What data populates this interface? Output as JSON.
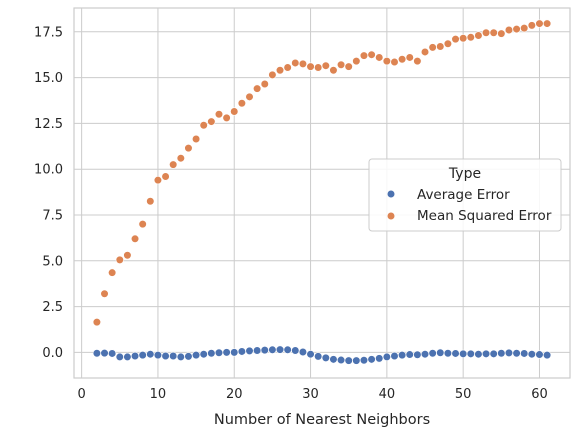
{
  "chart_data": {
    "type": "scatter",
    "title": "",
    "xlabel": "Number of Nearest Neighbors",
    "ylabel": "",
    "xlim": [
      -1.0,
      64.0
    ],
    "ylim": [
      -1.4,
      18.8
    ],
    "grid": true,
    "legend_placement": "center-right",
    "legend_title": "Type",
    "x_ticks": [
      {
        "value": 0,
        "label": "0"
      },
      {
        "value": 10,
        "label": "10"
      },
      {
        "value": 20,
        "label": "20"
      },
      {
        "value": 30,
        "label": "30"
      },
      {
        "value": 40,
        "label": "40"
      },
      {
        "value": 50,
        "label": "50"
      },
      {
        "value": 60,
        "label": "60"
      }
    ],
    "y_ticks": [
      {
        "value": 0.0,
        "label": "0.0"
      },
      {
        "value": 2.5,
        "label": "2.5"
      },
      {
        "value": 5.0,
        "label": "5.0"
      },
      {
        "value": 7.5,
        "label": "7.5"
      },
      {
        "value": 10.0,
        "label": "10.0"
      },
      {
        "value": 12.5,
        "label": "12.5"
      },
      {
        "value": 15.0,
        "label": "15.0"
      },
      {
        "value": 17.5,
        "label": "17.5"
      }
    ],
    "x": [
      2,
      3,
      4,
      5,
      6,
      7,
      8,
      9,
      10,
      11,
      12,
      13,
      14,
      15,
      16,
      17,
      18,
      19,
      20,
      21,
      22,
      23,
      24,
      25,
      26,
      27,
      28,
      29,
      30,
      31,
      32,
      33,
      34,
      35,
      36,
      37,
      38,
      39,
      40,
      41,
      42,
      43,
      44,
      45,
      46,
      47,
      48,
      49,
      50,
      51,
      52,
      53,
      54,
      55,
      56,
      57,
      58,
      59,
      60,
      61
    ],
    "series": [
      {
        "name": "Average Error",
        "color": "#4c72b0",
        "values": [
          -0.05,
          -0.04,
          -0.06,
          -0.25,
          -0.25,
          -0.2,
          -0.15,
          -0.1,
          -0.15,
          -0.2,
          -0.2,
          -0.25,
          -0.22,
          -0.15,
          -0.1,
          -0.05,
          -0.02,
          0.0,
          0.0,
          0.05,
          0.08,
          0.1,
          0.12,
          0.14,
          0.15,
          0.14,
          0.1,
          0.02,
          -0.1,
          -0.22,
          -0.3,
          -0.38,
          -0.42,
          -0.45,
          -0.45,
          -0.43,
          -0.38,
          -0.33,
          -0.25,
          -0.2,
          -0.15,
          -0.12,
          -0.13,
          -0.1,
          -0.05,
          -0.02,
          -0.05,
          -0.06,
          -0.08,
          -0.08,
          -0.1,
          -0.08,
          -0.08,
          -0.05,
          -0.03,
          -0.05,
          -0.06,
          -0.1,
          -0.12,
          -0.15
        ]
      },
      {
        "name": "Mean Squared Error",
        "color": "#dd8452",
        "values": [
          1.65,
          3.2,
          4.35,
          5.05,
          5.3,
          6.2,
          7.0,
          8.25,
          9.4,
          9.6,
          10.25,
          10.6,
          11.15,
          11.65,
          12.4,
          12.6,
          13.0,
          12.8,
          13.15,
          13.6,
          13.95,
          14.4,
          14.65,
          15.15,
          15.4,
          15.55,
          15.8,
          15.75,
          15.6,
          15.55,
          15.65,
          15.4,
          15.7,
          15.6,
          15.9,
          16.2,
          16.25,
          16.1,
          15.9,
          15.85,
          16.0,
          16.1,
          15.9,
          16.4,
          16.65,
          16.7,
          16.85,
          17.1,
          17.15,
          17.2,
          17.3,
          17.45,
          17.45,
          17.4,
          17.6,
          17.65,
          17.7,
          17.85,
          17.95,
          17.95
        ]
      }
    ]
  }
}
